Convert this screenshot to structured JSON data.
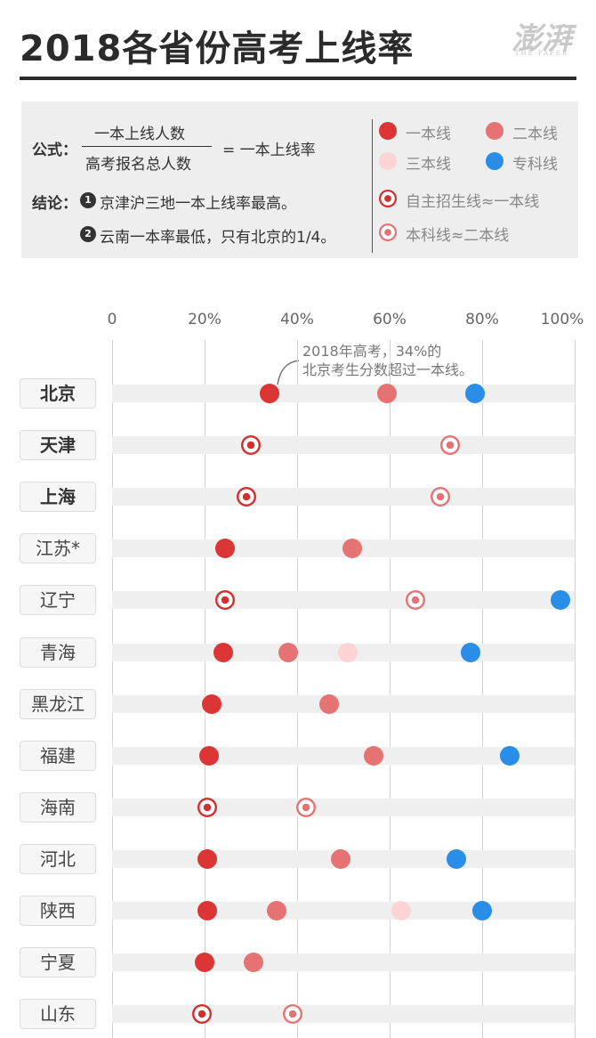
{
  "header": {
    "title": "2018各省份高考上线率",
    "brand_cn": "澎湃",
    "brand_en": "THE PAPER"
  },
  "legend": {
    "formula_label": "公式：",
    "numerator": "一本上线人数",
    "denominator": "高考报名总人数",
    "result": "= 一本上线率",
    "conclusion_label": "结论：",
    "conclusion_1_num": "1",
    "conclusion_1": "京津沪三地一本上线率最高。",
    "conclusion_2_num": "2",
    "conclusion_2": "云南一本率最低，只有北京的1/4。",
    "items": [
      {
        "label": "一本线",
        "style": "tier1"
      },
      {
        "label": "二本线",
        "style": "tier2"
      },
      {
        "label": "三本线",
        "style": "tier3"
      },
      {
        "label": "专科线",
        "style": "vocational"
      },
      {
        "label": "自主招生线≈一本线",
        "style": "ring1"
      },
      {
        "label": "本科线≈二本线",
        "style": "ring2"
      }
    ]
  },
  "colors": {
    "tier1": "#dc3535",
    "tier2": "#e57373",
    "tier3": "#fdd4d6",
    "vocational": "#2a8ee8",
    "ring1": "#d32f2f",
    "ring2": "#e57373"
  },
  "chart_data": {
    "type": "scatter",
    "x_ticks": [
      "0",
      "20%",
      "40%",
      "60%",
      "80%",
      "100%"
    ],
    "xlim": [
      0,
      100
    ],
    "grid": true,
    "annotation": {
      "lines": [
        "2018年高考，34%的",
        "北京考生分数超过一本线。"
      ],
      "province": "北京",
      "x": 34
    },
    "provinces": [
      {
        "name": "北京",
        "bold": true,
        "points": [
          {
            "x": 34,
            "type": "tier1"
          },
          {
            "x": 59.5,
            "type": "tier2"
          },
          {
            "x": 78.5,
            "type": "vocational"
          }
        ]
      },
      {
        "name": "天津",
        "bold": true,
        "points": [
          {
            "x": 30,
            "type": "ring1"
          },
          {
            "x": 73,
            "type": "ring2"
          }
        ]
      },
      {
        "name": "上海",
        "bold": true,
        "points": [
          {
            "x": 29,
            "type": "ring1"
          },
          {
            "x": 71,
            "type": "ring2"
          }
        ]
      },
      {
        "name": "江苏*",
        "bold": false,
        "points": [
          {
            "x": 24.5,
            "type": "tier1"
          },
          {
            "x": 52,
            "type": "tier2"
          }
        ]
      },
      {
        "name": "辽宁",
        "bold": false,
        "points": [
          {
            "x": 24.5,
            "type": "ring1"
          },
          {
            "x": 65.5,
            "type": "ring2"
          },
          {
            "x": 97,
            "type": "vocational"
          }
        ]
      },
      {
        "name": "青海",
        "bold": false,
        "points": [
          {
            "x": 24,
            "type": "tier1"
          },
          {
            "x": 38,
            "type": "tier2"
          },
          {
            "x": 51,
            "type": "tier3"
          },
          {
            "x": 77.5,
            "type": "vocational"
          }
        ]
      },
      {
        "name": "黑龙江",
        "bold": false,
        "points": [
          {
            "x": 21.5,
            "type": "tier1"
          },
          {
            "x": 47,
            "type": "tier2"
          }
        ]
      },
      {
        "name": "福建",
        "bold": false,
        "points": [
          {
            "x": 21,
            "type": "tier1"
          },
          {
            "x": 56.5,
            "type": "tier2"
          },
          {
            "x": 86,
            "type": "vocational"
          }
        ]
      },
      {
        "name": "海南",
        "bold": false,
        "points": [
          {
            "x": 20.5,
            "type": "ring1"
          },
          {
            "x": 42,
            "type": "ring2"
          }
        ]
      },
      {
        "name": "河北",
        "bold": false,
        "points": [
          {
            "x": 20.5,
            "type": "tier1"
          },
          {
            "x": 49.5,
            "type": "tier2"
          },
          {
            "x": 74.5,
            "type": "vocational"
          }
        ]
      },
      {
        "name": "陕西",
        "bold": false,
        "points": [
          {
            "x": 20.5,
            "type": "tier1"
          },
          {
            "x": 35.5,
            "type": "tier2"
          },
          {
            "x": 62.5,
            "type": "tier3"
          },
          {
            "x": 80,
            "type": "vocational"
          }
        ]
      },
      {
        "name": "宁夏",
        "bold": false,
        "points": [
          {
            "x": 20,
            "type": "tier1"
          },
          {
            "x": 30.5,
            "type": "tier2"
          }
        ]
      },
      {
        "name": "山东",
        "bold": false,
        "points": [
          {
            "x": 19.5,
            "type": "ring1"
          },
          {
            "x": 39,
            "type": "ring2"
          }
        ]
      }
    ]
  }
}
